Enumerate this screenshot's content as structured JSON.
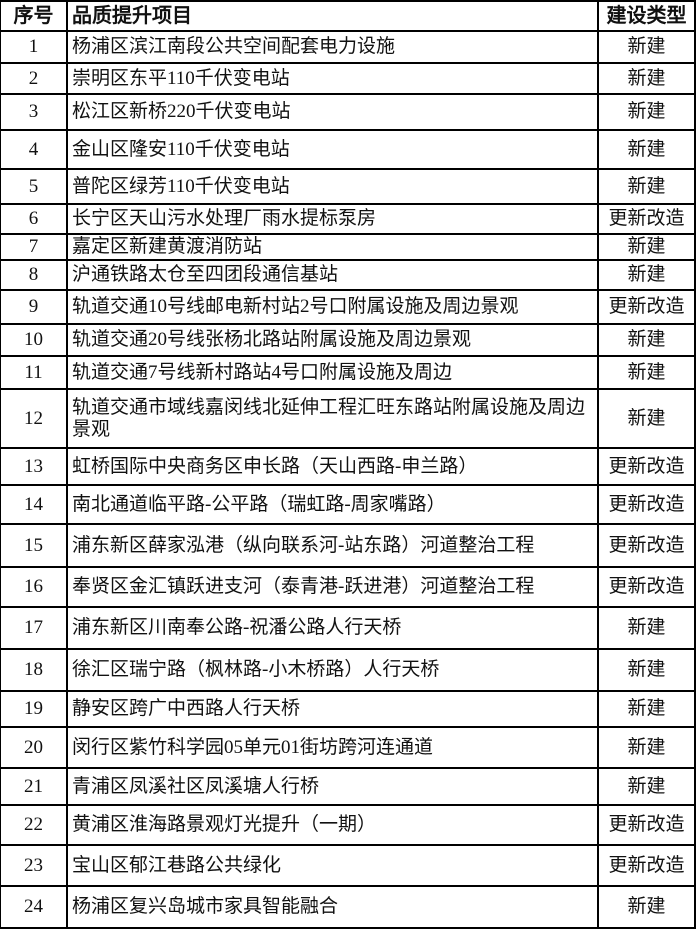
{
  "table": {
    "headers": [
      "序号",
      "品质提升项目",
      "建设类型"
    ],
    "rows": [
      {
        "no": "1",
        "project": "杨浦区滨江南段公共空间配套电力设施",
        "type": "新建"
      },
      {
        "no": "2",
        "project": "崇明区东平110千伏变电站",
        "type": "新建"
      },
      {
        "no": "3",
        "project": "松江区新桥220千伏变电站",
        "type": "新建"
      },
      {
        "no": "4",
        "project": "金山区隆安110千伏变电站",
        "type": "新建"
      },
      {
        "no": "5",
        "project": "普陀区绿芳110千伏变电站",
        "type": "新建"
      },
      {
        "no": "6",
        "project": "长宁区天山污水处理厂雨水提标泵房",
        "type": "更新改造"
      },
      {
        "no": "7",
        "project": "嘉定区新建黄渡消防站",
        "type": "新建"
      },
      {
        "no": "8",
        "project": "沪通铁路太仓至四团段通信基站",
        "type": "新建"
      },
      {
        "no": "9",
        "project": "轨道交通10号线邮电新村站2号口附属设施及周边景观",
        "type": "更新改造"
      },
      {
        "no": "10",
        "project": "轨道交通20号线张杨北路站附属设施及周边景观",
        "type": "新建"
      },
      {
        "no": "11",
        "project": "轨道交通7号线新村路站4号口附属设施及周边",
        "type": "新建"
      },
      {
        "no": "12",
        "project": "轨道交通市域线嘉闵线北延伸工程汇旺东路站附属设施及周边景观",
        "type": "新建"
      },
      {
        "no": "13",
        "project": "虹桥国际中央商务区申长路（天山西路-申兰路）",
        "type": "更新改造"
      },
      {
        "no": "14",
        "project": "南北通道临平路-公平路（瑞虹路-周家嘴路）",
        "type": "更新改造"
      },
      {
        "no": "15",
        "project": "浦东新区薛家泓港（纵向联系河-站东路）河道整治工程",
        "type": "更新改造"
      },
      {
        "no": "16",
        "project": "奉贤区金汇镇跃进支河（泰青港-跃进港）河道整治工程",
        "type": "更新改造"
      },
      {
        "no": "17",
        "project": "浦东新区川南奉公路-祝潘公路人行天桥",
        "type": "新建"
      },
      {
        "no": "18",
        "project": "徐汇区瑞宁路（枫林路-小木桥路）人行天桥",
        "type": "新建"
      },
      {
        "no": "19",
        "project": "静安区跨广中西路人行天桥",
        "type": "新建"
      },
      {
        "no": "20",
        "project": "闵行区紫竹科学园05单元01街坊跨河连通道",
        "type": "新建"
      },
      {
        "no": "21",
        "project": "青浦区凤溪社区凤溪塘人行桥",
        "type": "新建"
      },
      {
        "no": "22",
        "project": "黄浦区淮海路景观灯光提升（一期）",
        "type": "更新改造"
      },
      {
        "no": "23",
        "project": "宝山区郁江巷路公共绿化",
        "type": "更新改造"
      },
      {
        "no": "24",
        "project": "杨浦区复兴岛城市家具智能融合",
        "type": "新建"
      }
    ]
  }
}
